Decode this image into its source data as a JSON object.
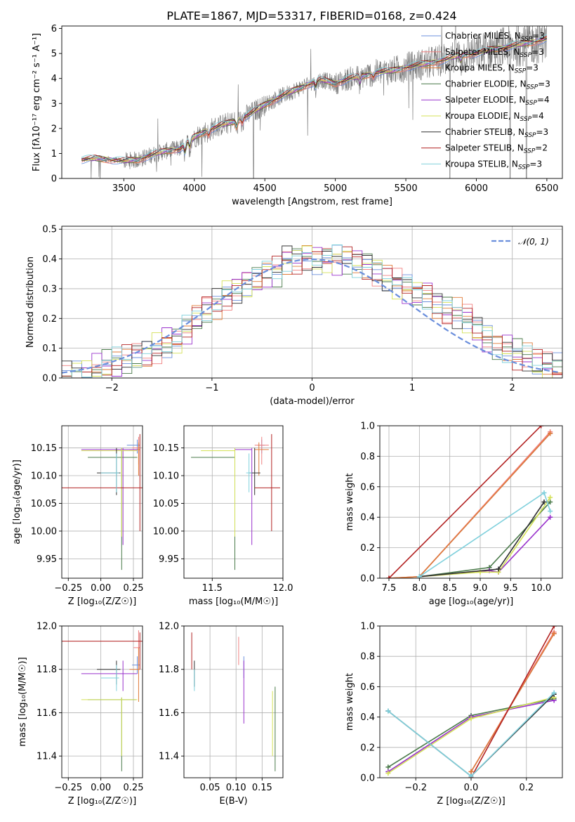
{
  "figure": {
    "title": "PLATE=1867, MJD=53317, FIBERID=0168, z=0.424"
  },
  "chart_data": [
    {
      "id": "spectrum",
      "type": "line",
      "xlabel": "wavelength [Angstrom, rest frame]",
      "ylabel": "Flux [fλ10⁻¹⁷ erg cm⁻² s⁻¹ A⁻¹]",
      "xlim": [
        3060,
        6610
      ],
      "ylim": [
        0,
        6.1
      ],
      "xticks": [
        3500,
        4000,
        4500,
        5000,
        5500,
        6000,
        6500
      ],
      "yticks": [
        0,
        1,
        2,
        3,
        4,
        5,
        6
      ],
      "grid": false,
      "legend_position": "top-right",
      "data_series": {
        "name": "",
        "color": "#808080"
      },
      "continuum": {
        "x": [
          3200,
          3300,
          3400,
          3500,
          3600,
          3700,
          3800,
          3900,
          4000,
          4100,
          4200,
          4300,
          4400,
          4500,
          4600,
          4700,
          4800,
          4900,
          5000,
          5100,
          5200,
          5300,
          5400,
          5500,
          5600,
          5700,
          5800,
          5900,
          6000,
          6100,
          6200,
          6300,
          6400,
          6500
        ],
        "y": [
          0.75,
          0.8,
          0.75,
          0.7,
          0.75,
          0.95,
          1.1,
          1.2,
          1.65,
          1.95,
          2.15,
          2.3,
          2.6,
          2.95,
          3.25,
          3.5,
          3.75,
          3.95,
          3.8,
          4.0,
          4.1,
          4.25,
          4.3,
          4.45,
          4.55,
          4.65,
          4.8,
          4.95,
          5.0,
          5.15,
          5.25,
          5.35,
          5.45,
          5.6
        ]
      },
      "legend": [
        {
          "name": "Chabrier MILES, N",
          "sub": "SSP",
          "suffix": "=3",
          "color": "#6b8fdc"
        },
        {
          "name": "Salpeter MILES, N",
          "sub": "SSP",
          "suffix": "=3",
          "color": "#f08080"
        },
        {
          "name": "Kroupa MILES, N",
          "sub": "SSP",
          "suffix": "=3",
          "color": "#e07b39"
        },
        {
          "name": "Chabrier ELODIE, N",
          "sub": "SSP",
          "suffix": "=3",
          "color": "#4a7a4a"
        },
        {
          "name": "Salpeter ELODIE, N",
          "sub": "SSP",
          "suffix": "=4",
          "color": "#9932cc"
        },
        {
          "name": "Kroupa ELODIE, N",
          "sub": "SSP",
          "suffix": "=4",
          "color": "#d4e157"
        },
        {
          "name": "Chabrier STELIB, N",
          "sub": "SSP",
          "suffix": "=3",
          "color": "#303030"
        },
        {
          "name": "Salpeter STELIB, N",
          "sub": "SSP",
          "suffix": "=2",
          "color": "#b22222"
        },
        {
          "name": "Kroupa STELIB, N",
          "sub": "SSP",
          "suffix": "=3",
          "color": "#7fd0dc"
        }
      ]
    },
    {
      "id": "residuals",
      "type": "line",
      "xlabel": "(data-model)/error",
      "ylabel": "Normed distribution",
      "xlim": [
        -2.5,
        2.5
      ],
      "ylim": [
        0,
        0.51
      ],
      "xticks": [
        -2,
        -1,
        0,
        1,
        2
      ],
      "yticks": [
        0.0,
        0.1,
        0.2,
        0.3,
        0.4,
        0.5
      ],
      "grid": true,
      "legend_position": "top-right",
      "legend": [
        {
          "name": "𝒩(0, 1)",
          "color": "#6b8fdc",
          "dash": true
        }
      ],
      "bin_centers": [
        -2.45,
        -2.35,
        -2.25,
        -2.15,
        -2.05,
        -1.95,
        -1.85,
        -1.75,
        -1.65,
        -1.55,
        -1.45,
        -1.35,
        -1.25,
        -1.15,
        -1.05,
        -0.95,
        -0.85,
        -0.75,
        -0.65,
        -0.55,
        -0.45,
        -0.35,
        -0.25,
        -0.15,
        -0.05,
        0.05,
        0.15,
        0.25,
        0.35,
        0.45,
        0.55,
        0.65,
        0.75,
        0.85,
        0.95,
        1.05,
        1.15,
        1.25,
        1.35,
        1.45,
        1.55,
        1.65,
        1.75,
        1.85,
        1.95,
        2.05,
        2.15,
        2.25,
        2.35,
        2.45
      ],
      "base_density": [
        0.005,
        0.01,
        0.015,
        0.03,
        0.045,
        0.05,
        0.06,
        0.07,
        0.08,
        0.1,
        0.12,
        0.13,
        0.16,
        0.2,
        0.23,
        0.25,
        0.28,
        0.3,
        0.32,
        0.33,
        0.35,
        0.36,
        0.4,
        0.4,
        0.41,
        0.4,
        0.4,
        0.4,
        0.4,
        0.39,
        0.38,
        0.36,
        0.34,
        0.32,
        0.3,
        0.28,
        0.28,
        0.25,
        0.23,
        0.22,
        0.2,
        0.16,
        0.13,
        0.11,
        0.1,
        0.08,
        0.07,
        0.05,
        0.04,
        0.03
      ]
    },
    {
      "id": "age-vs-Z",
      "type": "scatter",
      "xlabel": "Z [log₁₀(Z/Z☉)]",
      "ylabel": "age  [log₁₀(age/yr)]",
      "xlim": [
        -0.3,
        0.32
      ],
      "ylim": [
        9.915,
        10.19
      ],
      "xticks": [
        -0.25,
        0.0,
        0.25
      ],
      "yticks": [
        9.95,
        10.0,
        10.05,
        10.1,
        10.15
      ],
      "grid": true,
      "errorbars": [
        {
          "x": 0.28,
          "y": 10.155,
          "xlo": 0.2,
          "xhi": 0.3,
          "ylo": 10.14,
          "yhi": 10.165,
          "color": "#6b8fdc"
        },
        {
          "x": 0.29,
          "y": 10.15,
          "xlo": 0.24,
          "xhi": 0.3,
          "ylo": 10.12,
          "yhi": 10.17,
          "color": "#f08080"
        },
        {
          "x": 0.29,
          "y": 10.147,
          "xlo": 0.22,
          "xhi": 0.3,
          "ylo": 10.1,
          "yhi": 10.16,
          "color": "#e07b39"
        },
        {
          "x": 0.16,
          "y": 10.133,
          "xlo": -0.1,
          "xhi": 0.28,
          "ylo": 9.93,
          "yhi": 10.15,
          "color": "#4a7a4a"
        },
        {
          "x": 0.17,
          "y": 10.147,
          "xlo": -0.15,
          "xhi": 0.28,
          "ylo": 9.975,
          "yhi": 10.15,
          "color": "#9932cc"
        },
        {
          "x": 0.16,
          "y": 10.145,
          "xlo": -0.15,
          "xhi": 0.28,
          "ylo": 9.99,
          "yhi": 10.15,
          "color": "#d4e157"
        },
        {
          "x": 0.12,
          "y": 10.105,
          "xlo": -0.03,
          "xhi": 0.15,
          "ylo": 10.065,
          "yhi": 10.15,
          "color": "#303030"
        },
        {
          "x": 0.3,
          "y": 10.078,
          "xlo": -0.3,
          "xhi": 0.32,
          "ylo": 10.0,
          "yhi": 10.175,
          "color": "#b22222"
        },
        {
          "x": 0.12,
          "y": 10.105,
          "xlo": 0.0,
          "xhi": 0.14,
          "ylo": 10.07,
          "yhi": 10.14,
          "color": "#7fd0dc"
        }
      ]
    },
    {
      "id": "age-vs-mass",
      "type": "scatter",
      "xlabel": "mass [log₁₀(M/M☉)]",
      "ylabel": "",
      "xlim": [
        11.3,
        12.0
      ],
      "ylim": [
        9.915,
        10.19
      ],
      "xticks": [
        11.5,
        12.0
      ],
      "yticks": [
        9.95,
        10.0,
        10.05,
        10.1,
        10.15
      ],
      "grid": true,
      "errorbars": [
        {
          "x": 11.85,
          "y": 10.155,
          "xlo": 11.82,
          "xhi": 11.87,
          "ylo": 10.14,
          "yhi": 10.165,
          "color": "#6b8fdc"
        },
        {
          "x": 11.85,
          "y": 10.155,
          "xlo": 11.8,
          "xhi": 11.9,
          "ylo": 10.12,
          "yhi": 10.17,
          "color": "#f08080"
        },
        {
          "x": 11.83,
          "y": 10.147,
          "xlo": 11.8,
          "xhi": 11.9,
          "ylo": 10.1,
          "yhi": 10.16,
          "color": "#e07b39"
        },
        {
          "x": 11.66,
          "y": 10.133,
          "xlo": 11.35,
          "xhi": 11.66,
          "ylo": 9.93,
          "yhi": 10.15,
          "color": "#4a7a4a"
        },
        {
          "x": 11.78,
          "y": 10.147,
          "xlo": 11.66,
          "xhi": 11.78,
          "ylo": 9.975,
          "yhi": 10.15,
          "color": "#9932cc"
        },
        {
          "x": 11.66,
          "y": 10.145,
          "xlo": 11.42,
          "xhi": 11.66,
          "ylo": 9.99,
          "yhi": 10.15,
          "color": "#d4e157"
        },
        {
          "x": 11.8,
          "y": 10.105,
          "xlo": 11.76,
          "xhi": 11.84,
          "ylo": 10.065,
          "yhi": 10.15,
          "color": "#303030"
        },
        {
          "x": 11.92,
          "y": 10.078,
          "xlo": 11.8,
          "xhi": 11.98,
          "ylo": 10.0,
          "yhi": 10.175,
          "color": "#b22222"
        },
        {
          "x": 11.76,
          "y": 10.105,
          "xlo": 11.74,
          "xhi": 11.78,
          "ylo": 10.07,
          "yhi": 10.14,
          "color": "#7fd0dc"
        }
      ]
    },
    {
      "id": "massweight-vs-age",
      "type": "line",
      "xlabel": "age  [log₁₀(age/yr)]",
      "ylabel": "mass weight",
      "xlim": [
        7.35,
        10.35
      ],
      "ylim": [
        0,
        1.0
      ],
      "xticks": [
        7.5,
        8.0,
        8.5,
        9.0,
        9.5,
        10.0
      ],
      "yticks": [
        0.0,
        0.2,
        0.4,
        0.6,
        0.8,
        1.0
      ],
      "grid": true,
      "series": [
        {
          "name": "Chabrier MILES",
          "color": "#6b8fdc",
          "x": [
            7.5,
            8.0,
            10.15
          ],
          "y": [
            0.0,
            0.01,
            0.95
          ]
        },
        {
          "name": "Salpeter MILES",
          "color": "#f08080",
          "x": [
            7.5,
            8.0,
            10.15
          ],
          "y": [
            0.0,
            0.01,
            0.96
          ]
        },
        {
          "name": "Kroupa MILES",
          "color": "#e07b39",
          "x": [
            7.5,
            8.0,
            10.15
          ],
          "y": [
            0.0,
            0.01,
            0.95
          ]
        },
        {
          "name": "Chabrier ELODIE",
          "color": "#4a7a4a",
          "x": [
            8.0,
            9.15,
            10.15
          ],
          "y": [
            0.01,
            0.07,
            0.5
          ]
        },
        {
          "name": "Salpeter ELODIE",
          "color": "#9932cc",
          "x": [
            8.0,
            9.15,
            9.3,
            10.15
          ],
          "y": [
            0.01,
            0.05,
            0.04,
            0.4
          ]
        },
        {
          "name": "Kroupa ELODIE",
          "color": "#d4e157",
          "x": [
            8.0,
            9.0,
            9.3,
            10.15
          ],
          "y": [
            0.01,
            0.04,
            0.04,
            0.53
          ]
        },
        {
          "name": "Chabrier STELIB",
          "color": "#303030",
          "x": [
            8.0,
            9.3,
            10.05
          ],
          "y": [
            0.01,
            0.06,
            0.5
          ]
        },
        {
          "name": "Salpeter STELIB",
          "color": "#b22222",
          "x": [
            7.5,
            10.0
          ],
          "y": [
            0.0,
            1.0
          ]
        },
        {
          "name": "Kroupa STELIB",
          "color": "#7fd0dc",
          "x": [
            8.0,
            10.05,
            10.15
          ],
          "y": [
            0.01,
            0.56,
            0.44
          ]
        }
      ]
    },
    {
      "id": "mass-vs-Z",
      "type": "scatter",
      "xlabel": "Z [log₁₀(Z/Z☉)]",
      "ylabel": "mass [log₁₀(M/M☉)]",
      "xlim": [
        -0.3,
        0.32
      ],
      "ylim": [
        11.3,
        12.0
      ],
      "xticks": [
        -0.25,
        0.0,
        0.25
      ],
      "yticks": [
        11.4,
        11.6,
        11.8,
        12.0
      ],
      "grid": true,
      "errorbars": [
        {
          "x": 0.28,
          "y": 11.82,
          "xlo": 0.24,
          "xhi": 0.3,
          "ylo": 11.78,
          "yhi": 11.86,
          "color": "#6b8fdc"
        },
        {
          "x": 0.29,
          "y": 11.9,
          "xlo": 0.25,
          "xhi": 0.3,
          "ylo": 11.82,
          "yhi": 11.98,
          "color": "#f08080"
        },
        {
          "x": 0.29,
          "y": 11.8,
          "xlo": 0.22,
          "xhi": 0.3,
          "ylo": 11.65,
          "yhi": 11.9,
          "color": "#e07b39"
        },
        {
          "x": 0.16,
          "y": 11.66,
          "xlo": -0.1,
          "xhi": 0.27,
          "ylo": 11.33,
          "yhi": 11.67,
          "color": "#4a7a4a"
        },
        {
          "x": 0.17,
          "y": 11.78,
          "xlo": -0.15,
          "xhi": 0.28,
          "ylo": 11.7,
          "yhi": 11.84,
          "color": "#9932cc"
        },
        {
          "x": 0.16,
          "y": 11.66,
          "xlo": -0.15,
          "xhi": 0.28,
          "ylo": 11.4,
          "yhi": 11.67,
          "color": "#d4e157"
        },
        {
          "x": 0.12,
          "y": 11.8,
          "xlo": -0.03,
          "xhi": 0.15,
          "ylo": 11.73,
          "yhi": 11.84,
          "color": "#303030"
        },
        {
          "x": 0.3,
          "y": 11.93,
          "xlo": -0.3,
          "xhi": 0.32,
          "ylo": 11.8,
          "yhi": 11.97,
          "color": "#b22222"
        },
        {
          "x": 0.12,
          "y": 11.76,
          "xlo": 0.0,
          "xhi": 0.14,
          "ylo": 11.7,
          "yhi": 11.82,
          "color": "#7fd0dc"
        }
      ]
    },
    {
      "id": "mass-vs-ebv",
      "type": "scatter",
      "xlabel": "E(B-V)",
      "ylabel": "",
      "xlim": [
        0.0,
        0.19
      ],
      "ylim": [
        11.3,
        12.0
      ],
      "xticks": [
        0.05,
        0.1,
        0.15
      ],
      "yticks": [
        11.4,
        11.6,
        11.8,
        12.0
      ],
      "grid": true,
      "errorbars": [
        {
          "x": 0.02,
          "y": 11.8,
          "ylo": 11.72,
          "yhi": 11.84,
          "color": "#303030"
        },
        {
          "x": 0.02,
          "y": 11.75,
          "ylo": 11.7,
          "yhi": 11.8,
          "color": "#7fd0dc"
        },
        {
          "x": 0.015,
          "y": 11.88,
          "ylo": 11.8,
          "yhi": 11.97,
          "color": "#b22222"
        },
        {
          "x": 0.105,
          "y": 11.88,
          "ylo": 11.82,
          "yhi": 11.95,
          "color": "#f08080"
        },
        {
          "x": 0.115,
          "y": 11.8,
          "ylo": 11.76,
          "yhi": 11.86,
          "color": "#6b8fdc"
        },
        {
          "x": 0.115,
          "y": 11.7,
          "ylo": 11.55,
          "yhi": 11.84,
          "color": "#9932cc"
        },
        {
          "x": 0.17,
          "y": 11.55,
          "ylo": 11.4,
          "yhi": 11.7,
          "color": "#d4e157"
        },
        {
          "x": 0.175,
          "y": 11.5,
          "ylo": 11.33,
          "yhi": 11.72,
          "color": "#4a7a4a"
        }
      ]
    },
    {
      "id": "massweight-vs-Z",
      "type": "line",
      "xlabel": "Z [log₁₀(Z/Z☉)]",
      "ylabel": "mass weight",
      "xlim": [
        -0.33,
        0.33
      ],
      "ylim": [
        0,
        1.0
      ],
      "xticks": [
        -0.2,
        0.0,
        0.2
      ],
      "yticks": [
        0.0,
        0.2,
        0.4,
        0.6,
        0.8,
        1.0
      ],
      "grid": true,
      "series": [
        {
          "name": "Chabrier MILES",
          "color": "#6b8fdc",
          "x": [
            0.0,
            0.3
          ],
          "y": [
            0.04,
            0.95
          ]
        },
        {
          "name": "Salpeter MILES",
          "color": "#f08080",
          "x": [
            0.0,
            0.3
          ],
          "y": [
            0.04,
            0.96
          ]
        },
        {
          "name": "Kroupa MILES",
          "color": "#e07b39",
          "x": [
            0.0,
            0.3
          ],
          "y": [
            0.04,
            0.95
          ]
        },
        {
          "name": "Chabrier ELODIE",
          "color": "#4a7a4a",
          "x": [
            -0.3,
            0.0,
            0.3
          ],
          "y": [
            0.07,
            0.41,
            0.52
          ]
        },
        {
          "name": "Salpeter ELODIE",
          "color": "#9932cc",
          "x": [
            -0.3,
            0.0,
            0.3
          ],
          "y": [
            0.04,
            0.4,
            0.51
          ]
        },
        {
          "name": "Kroupa ELODIE",
          "color": "#d4e157",
          "x": [
            -0.3,
            0.0,
            0.3
          ],
          "y": [
            0.03,
            0.39,
            0.53
          ]
        },
        {
          "name": "Chabrier STELIB",
          "color": "#303030",
          "x": [
            -0.3,
            0.0,
            0.3
          ],
          "y": [
            0.44,
            0.01,
            0.55
          ]
        },
        {
          "name": "Salpeter STELIB",
          "color": "#b22222",
          "x": [
            0.0,
            0.3
          ],
          "y": [
            0.0,
            1.0
          ]
        },
        {
          "name": "Kroupa STELIB",
          "color": "#7fd0dc",
          "x": [
            -0.3,
            0.0,
            0.3
          ],
          "y": [
            0.44,
            0.01,
            0.56
          ]
        }
      ]
    }
  ]
}
